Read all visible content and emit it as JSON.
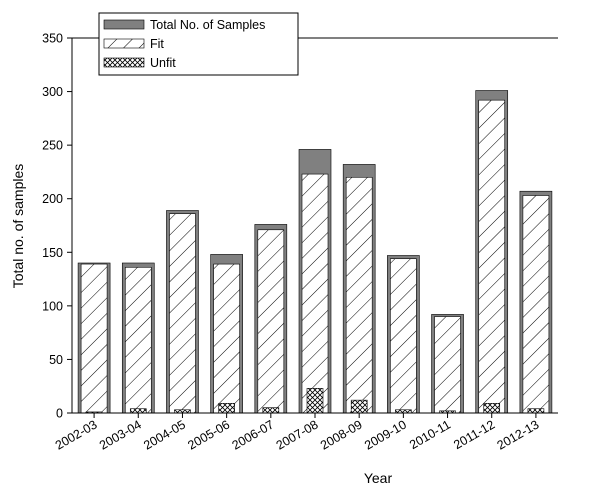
{
  "chart_data": {
    "type": "bar",
    "xlabel": "Year",
    "ylabel": "Total no. of samples",
    "ylim": [
      0,
      350
    ],
    "yticks": [
      0,
      50,
      100,
      150,
      200,
      250,
      300,
      350
    ],
    "grid": false,
    "legend_position": "top-left",
    "categories": [
      "2002-03",
      "2003-04",
      "2004-05",
      "2005-06",
      "2006-07",
      "2007-08",
      "2008-09",
      "2009-10",
      "2010-11",
      "2011-12",
      "2012-13"
    ],
    "series": [
      {
        "name": "Total No. of Samples",
        "values": [
          140,
          140,
          189,
          148,
          176,
          246,
          232,
          147,
          92,
          301,
          207
        ],
        "color": "#808080"
      },
      {
        "name": "Fit",
        "values": [
          139,
          136,
          186,
          139,
          171,
          223,
          220,
          144,
          90,
          292,
          203
        ],
        "pattern": "diagonal-hatch"
      },
      {
        "name": "Unfit",
        "values": [
          1,
          4,
          3,
          9,
          5,
          23,
          12,
          3,
          2,
          9,
          4
        ],
        "pattern": "crosshatch"
      }
    ]
  }
}
